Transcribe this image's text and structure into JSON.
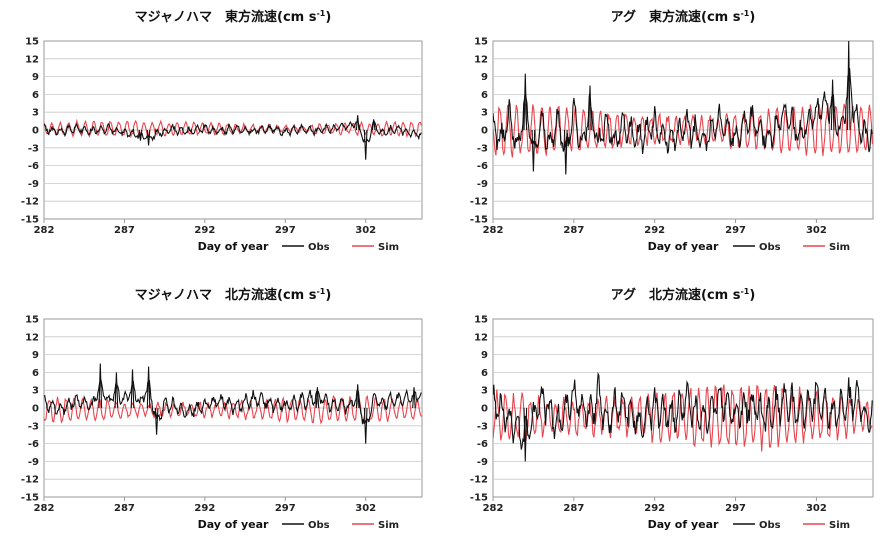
{
  "chart_data": [
    {
      "type": "line",
      "title": "マジャノハマ　東方流速",
      "unit": "(cm s",
      "unit_sup": "-1",
      "unit_close": ")",
      "xlabel": "Day of year",
      "ylabel": "",
      "xlim": [
        282,
        305.5
      ],
      "ylim": [
        -15,
        15
      ],
      "xticks": [
        "282",
        "287",
        "292",
        "297",
        "302"
      ],
      "yticks": [
        "15",
        "12",
        "9",
        "6",
        "3",
        "0",
        "-3",
        "-6",
        "-9",
        "-12",
        "-15"
      ],
      "legend_placement": "bottom-right",
      "series": [
        {
          "name": "Obs",
          "color": "#111111",
          "x": [
            282,
            283,
            284,
            285,
            286,
            287,
            288,
            288.5,
            289,
            290,
            291,
            292,
            293,
            294,
            295,
            296,
            297,
            298,
            299,
            300,
            301,
            301.5,
            302,
            302.5,
            303,
            304,
            305
          ],
          "y": [
            0.3,
            -0.6,
            0.5,
            -0.4,
            0.4,
            -0.8,
            -1.8,
            -2.6,
            -1.2,
            0.3,
            -0.5,
            0.4,
            -0.3,
            0.5,
            -0.4,
            0.3,
            -0.5,
            0.4,
            -0.3,
            0.6,
            1.2,
            2.5,
            -5.0,
            1.8,
            -1.0,
            0.5,
            -1.2
          ]
        },
        {
          "name": "Sim",
          "color": "#e8454f",
          "amp": 1.2,
          "period": 0.52,
          "offset": 0.2
        }
      ]
    },
    {
      "type": "line",
      "title": "アグ　東方流速",
      "unit": "(cm s",
      "unit_sup": "-1",
      "unit_close": ")",
      "xlabel": "Day of year",
      "ylabel": "",
      "xlim": [
        282,
        305.5
      ],
      "ylim": [
        -15,
        15
      ],
      "xticks": [
        "282",
        "287",
        "292",
        "297",
        "302"
      ],
      "yticks": [
        "15",
        "12",
        "9",
        "6",
        "3",
        "0",
        "-3",
        "-6",
        "-9",
        "-12",
        "-15"
      ],
      "legend_placement": "bottom-right",
      "series": [
        {
          "name": "Obs",
          "color": "#111111",
          "x": [
            282,
            282.5,
            283,
            283.5,
            284,
            284.5,
            285,
            285.5,
            286,
            286.5,
            287,
            287.5,
            288,
            288.5,
            289,
            289.5,
            290,
            291,
            292,
            293,
            294,
            295,
            296,
            297,
            298,
            299,
            300,
            301,
            302,
            303,
            303.5,
            304,
            304.5,
            305
          ],
          "y": [
            2,
            -4,
            5,
            -6,
            9.5,
            -7,
            3,
            -5,
            4,
            -7.5,
            6,
            -6,
            7.5,
            -5,
            3,
            -4,
            2,
            -3,
            1.5,
            -3.5,
            2,
            -4,
            3,
            -3,
            4,
            -3,
            5,
            -2,
            6,
            8.5,
            -2,
            15,
            2,
            -1.5
          ]
        },
        {
          "name": "Sim",
          "color": "#e8454f",
          "amp": 4.0,
          "period": 0.52,
          "offset": 0.0
        }
      ]
    },
    {
      "type": "line",
      "title": "マジャノハマ　北方流速",
      "unit": "(cm s",
      "unit_sup": "-1",
      "unit_close": ")",
      "xlabel": "Day of year",
      "ylabel": "",
      "xlim": [
        282,
        305.5
      ],
      "ylim": [
        -15,
        15
      ],
      "xticks": [
        "282",
        "287",
        "292",
        "297",
        "302"
      ],
      "yticks": [
        "15",
        "12",
        "9",
        "6",
        "3",
        "0",
        "-3",
        "-6",
        "-9",
        "-12",
        "-15"
      ],
      "legend_placement": "bottom-right",
      "series": [
        {
          "name": "Obs",
          "color": "#111111",
          "x": [
            282,
            283,
            284,
            285,
            285.5,
            286,
            286.5,
            287,
            287.5,
            288,
            288.5,
            289,
            289.5,
            290,
            291,
            292,
            293,
            294,
            295,
            296,
            297,
            298,
            299,
            300,
            301,
            301.5,
            302,
            302.5,
            303,
            304,
            305
          ],
          "y": [
            1.5,
            -0.5,
            2.5,
            0.5,
            7.5,
            1.5,
            6,
            2,
            6.5,
            1,
            7,
            -4.5,
            1,
            0.5,
            -1.5,
            1,
            2,
            0.5,
            3,
            1.5,
            0.5,
            2,
            3.5,
            1,
            0.5,
            4,
            -6,
            3,
            1.5,
            2.5,
            3.5
          ]
        },
        {
          "name": "Sim",
          "color": "#e8454f",
          "amp": 2.0,
          "period": 0.52,
          "offset": -0.3
        }
      ]
    },
    {
      "type": "line",
      "title": "アグ　北方流速",
      "unit": "(cm s",
      "unit_sup": "-1",
      "unit_close": ")",
      "xlabel": "Day of year",
      "ylabel": "",
      "xlim": [
        282,
        305.5
      ],
      "ylim": [
        -15,
        15
      ],
      "xticks": [
        "282",
        "287",
        "292",
        "297",
        "302"
      ],
      "yticks": [
        "15",
        "12",
        "9",
        "6",
        "3",
        "0",
        "-3",
        "-6",
        "-9",
        "-12",
        "-15"
      ],
      "legend_placement": "bottom-right",
      "series": [
        {
          "name": "Obs",
          "color": "#111111",
          "x": [
            282,
            283,
            284,
            285,
            286,
            287,
            288,
            288.5,
            289,
            290,
            291,
            292,
            293,
            294,
            295,
            296,
            297,
            298,
            299,
            300,
            301,
            302,
            303,
            304,
            304.5,
            305
          ],
          "y": [
            1,
            -4,
            -9,
            3,
            -5,
            4,
            -3,
            4.5,
            -4,
            2,
            -5,
            1,
            -3,
            2,
            -4,
            3,
            -2,
            1.5,
            -3,
            2,
            -1,
            3,
            -2,
            2.5,
            4,
            -2
          ]
        },
        {
          "name": "Sim",
          "color": "#e8454f",
          "amp": 5.0,
          "period": 0.52,
          "offset": -1.5
        }
      ]
    }
  ]
}
